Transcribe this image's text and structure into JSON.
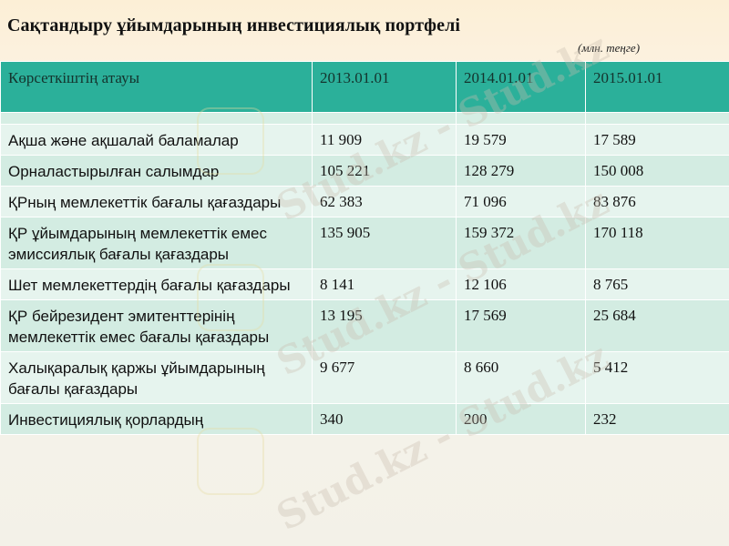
{
  "page": {
    "title": "Сақтандыру ұйымдарының инвестициялық портфелі",
    "unit_note": "(млн. теңге)"
  },
  "table": {
    "headers": [
      "Көрсеткіштің атауы",
      "2013.01.01",
      "2014.01.01",
      "2015.01.01"
    ],
    "rows": [
      {
        "label": "Ақша және ақшалай баламалар",
        "values": [
          "11 909",
          "19 579",
          "17 589"
        ]
      },
      {
        "label": "Орналастырылған салымдар",
        "values": [
          "105 221",
          "128 279",
          "150 008"
        ]
      },
      {
        "label": "ҚРның мемлекеттік бағалы қағаздары",
        "values": [
          "62 383",
          "71 096",
          "83 876"
        ]
      },
      {
        "label": "ҚР ұйымдарының мемлекеттік емес эмиссиялық бағалы қағаздары",
        "values": [
          "135 905",
          "159 372",
          "170 118"
        ]
      },
      {
        "label": "Шет мемлекеттердің бағалы қағаздары",
        "values": [
          "8 141",
          "12 106",
          "8 765"
        ]
      },
      {
        "label": "ҚР бейрезидент эмитенттерінің мемлекеттік емес бағалы қағаздары",
        "values": [
          "13 195",
          "17 569",
          "25 684"
        ]
      },
      {
        "label": "Халықаралық қаржы ұйымдарының бағалы қағаздары",
        "values": [
          "9 677",
          "8 660",
          "5 412"
        ]
      },
      {
        "label": "Инвестициялық қорлардың",
        "values": [
          "340",
          "200",
          "232"
        ]
      }
    ]
  },
  "watermark": {
    "text": "Stud.kz - Stud.kz"
  }
}
